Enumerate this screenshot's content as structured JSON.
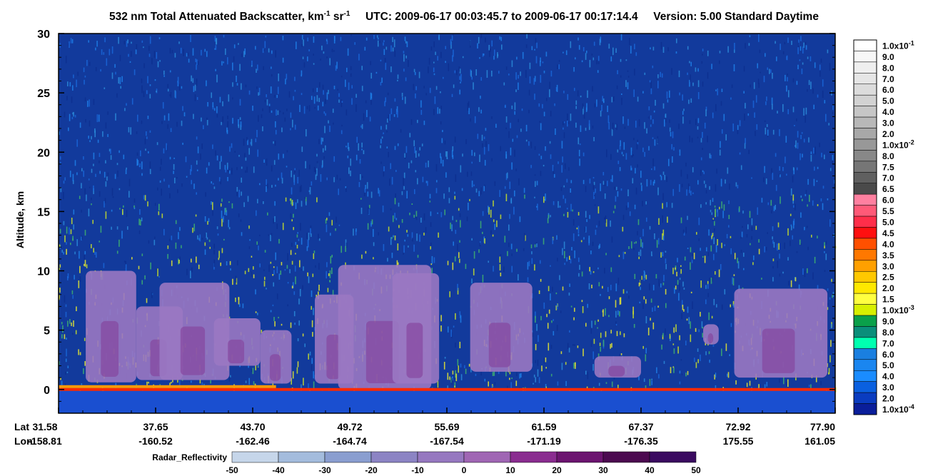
{
  "title": {
    "prefix": "532 nm Total Attenuated Backscatter, km",
    "exp1": "-1",
    "mid": " sr",
    "exp2": "-1",
    "utc": "UTC:  2009-06-17 00:03:45.7  to  2009-06-17 00:17:14.4",
    "version": "Version: 5.00  Standard  Daytime"
  },
  "colors": {
    "background_blue": "#123a9c",
    "ground": "#1a4fd0",
    "surface_red": "#ff2a00"
  },
  "chart_data": {
    "type": "heatmap",
    "ylabel": "Altitude, km",
    "ylim": [
      -2,
      30
    ],
    "y_ticks": [
      0,
      5,
      10,
      15,
      20,
      25,
      30
    ],
    "x_axis": {
      "row_labels": [
        "Lat",
        "Lon"
      ],
      "lat": [
        "31.58",
        "37.65",
        "43.70",
        "49.72",
        "55.69",
        "61.59",
        "67.37",
        "72.92",
        "77.90"
      ],
      "lon": [
        "-158.81",
        "-160.52",
        "-162.46",
        "-164.74",
        "-167.54",
        "-171.19",
        "-176.35",
        "175.55",
        "161.05"
      ]
    },
    "backscatter_colorbar": {
      "labels": [
        {
          "base": "1.0x10",
          "exp": "-1"
        },
        {
          "base": "9.0"
        },
        {
          "base": "8.0"
        },
        {
          "base": "7.0"
        },
        {
          "base": "6.0"
        },
        {
          "base": "5.0"
        },
        {
          "base": "4.0"
        },
        {
          "base": "3.0"
        },
        {
          "base": "2.0"
        },
        {
          "base": "1.0x10",
          "exp": "-2"
        },
        {
          "base": "8.0"
        },
        {
          "base": "7.5"
        },
        {
          "base": "7.0"
        },
        {
          "base": "6.5"
        },
        {
          "base": "6.0"
        },
        {
          "base": "5.5"
        },
        {
          "base": "5.0"
        },
        {
          "base": "4.5"
        },
        {
          "base": "4.0"
        },
        {
          "base": "3.5"
        },
        {
          "base": "3.0"
        },
        {
          "base": "2.5"
        },
        {
          "base": "2.0"
        },
        {
          "base": "1.5"
        },
        {
          "base": "1.0x10",
          "exp": "-3"
        },
        {
          "base": "9.0"
        },
        {
          "base": "8.0"
        },
        {
          "base": "7.0"
        },
        {
          "base": "6.0"
        },
        {
          "base": "5.0"
        },
        {
          "base": "4.0"
        },
        {
          "base": "3.0"
        },
        {
          "base": "2.0"
        },
        {
          "base": "1.0x10",
          "exp": "-4"
        }
      ],
      "colors": [
        "#ffffff",
        "#f7f7f7",
        "#efefef",
        "#e6e6e6",
        "#dcdcdc",
        "#d2d2d2",
        "#c6c6c6",
        "#b8b8b8",
        "#a8a8a8",
        "#989898",
        "#888888",
        "#767676",
        "#606060",
        "#4a4a4a",
        "#ff80a0",
        "#ff5a78",
        "#ff2e4a",
        "#ff1010",
        "#ff5000",
        "#ff7800",
        "#ffa000",
        "#ffc800",
        "#ffe800",
        "#ffff40",
        "#d8f000",
        "#0aa04a",
        "#0a8f7a",
        "#00ffb0",
        "#1a7fe0",
        "#1a86f0",
        "#1a8cff",
        "#0a60e0",
        "#0a3cc0",
        "#0a1e9a"
      ]
    },
    "radar_colorbar": {
      "label": "Radar_Reflectivity",
      "ticks": [
        "-50",
        "-40",
        "-30",
        "-20",
        "-10",
        "0",
        "10",
        "20",
        "30",
        "40",
        "50"
      ],
      "colors": [
        "#c6d6ea",
        "#a4bcdd",
        "#8a9ed0",
        "#8c84c4",
        "#9678c0",
        "#a066b4",
        "#8a2c90",
        "#6c1470",
        "#4c0a50",
        "#3a0a60",
        "#4a0a90"
      ]
    },
    "features": {
      "cloud_fill": "#9a78c2",
      "cloud_core": "#84409a",
      "surface_level_km": 0
    }
  }
}
